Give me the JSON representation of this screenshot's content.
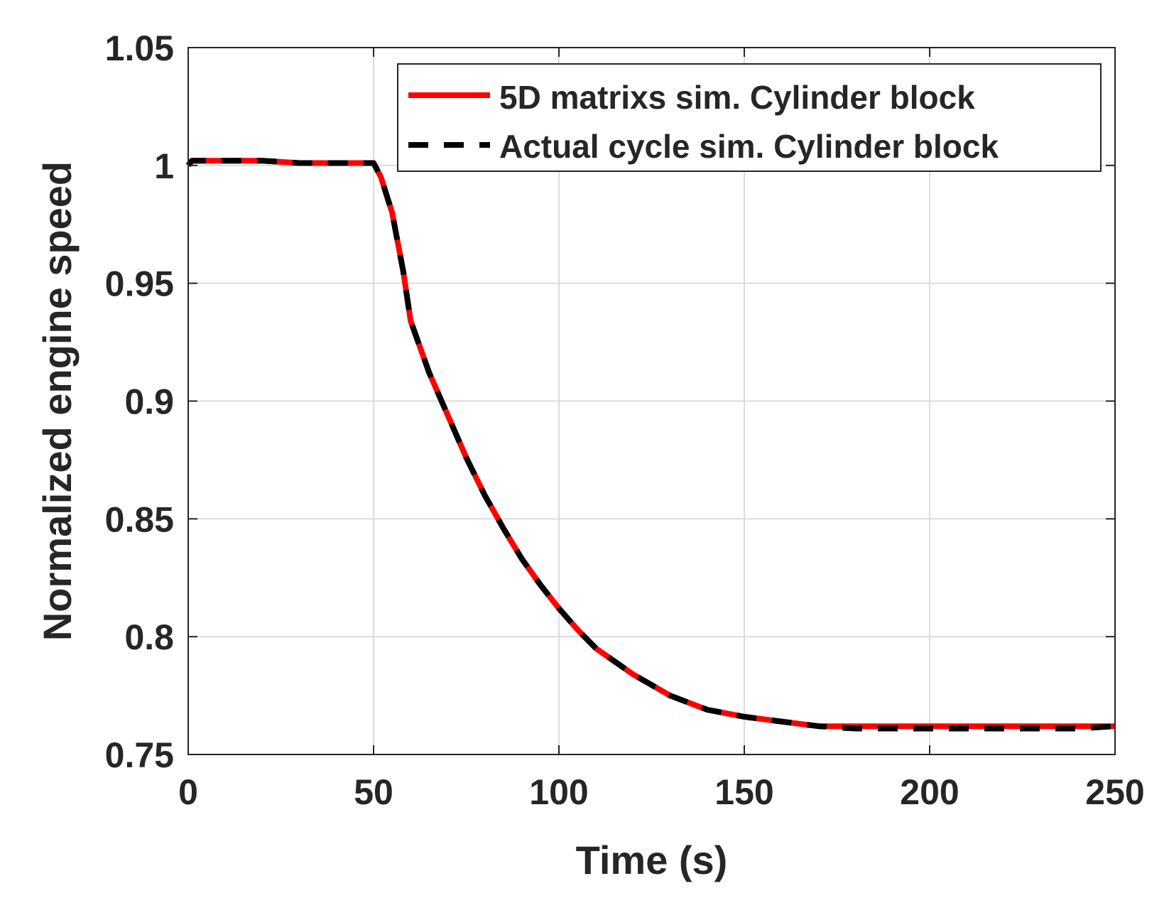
{
  "chart_data": {
    "type": "line",
    "title": "",
    "xlabel": "Time (s)",
    "ylabel": "Normalized engine speed",
    "xlim": [
      0,
      250
    ],
    "ylim": [
      0.75,
      1.05
    ],
    "xticks": [
      0,
      50,
      100,
      150,
      200,
      250
    ],
    "xtick_labels": [
      "0",
      "50",
      "100",
      "150",
      "200",
      "250"
    ],
    "yticks": [
      0.75,
      0.8,
      0.85,
      0.9,
      0.95,
      1.0,
      1.05
    ],
    "ytick_labels": [
      "0.75",
      "0.8",
      "0.85",
      "0.9",
      "0.95",
      "1",
      "1.05"
    ],
    "grid": true,
    "legend_position": "top-right",
    "x": [
      0,
      1,
      2,
      10,
      20,
      30,
      40,
      45,
      50,
      52,
      55,
      58,
      60,
      65,
      70,
      75,
      80,
      85,
      90,
      95,
      100,
      105,
      110,
      120,
      130,
      140,
      150,
      160,
      170,
      180,
      190,
      200,
      210,
      220,
      230,
      240,
      250
    ],
    "series": [
      {
        "name": "5D matrixs sim. Cylinder block",
        "color": "#ff0000",
        "style": "solid",
        "values": [
          1.0,
          1.002,
          1.002,
          1.002,
          1.002,
          1.001,
          1.001,
          1.001,
          1.001,
          0.995,
          0.98,
          0.955,
          0.934,
          0.912,
          0.894,
          0.876,
          0.86,
          0.846,
          0.833,
          0.822,
          0.812,
          0.803,
          0.795,
          0.784,
          0.775,
          0.769,
          0.766,
          0.764,
          0.762,
          0.762,
          0.762,
          0.762,
          0.762,
          0.762,
          0.762,
          0.762,
          0.762
        ]
      },
      {
        "name": "Actual cycle sim. Cylinder block",
        "color": "#000000",
        "style": "dashed",
        "values": [
          1.0,
          1.002,
          1.002,
          1.002,
          1.002,
          1.001,
          1.001,
          1.001,
          1.001,
          0.995,
          0.98,
          0.955,
          0.934,
          0.912,
          0.894,
          0.876,
          0.86,
          0.846,
          0.833,
          0.822,
          0.812,
          0.803,
          0.795,
          0.784,
          0.775,
          0.769,
          0.766,
          0.764,
          0.762,
          0.761,
          0.761,
          0.761,
          0.761,
          0.761,
          0.761,
          0.761,
          0.762
        ]
      }
    ]
  }
}
